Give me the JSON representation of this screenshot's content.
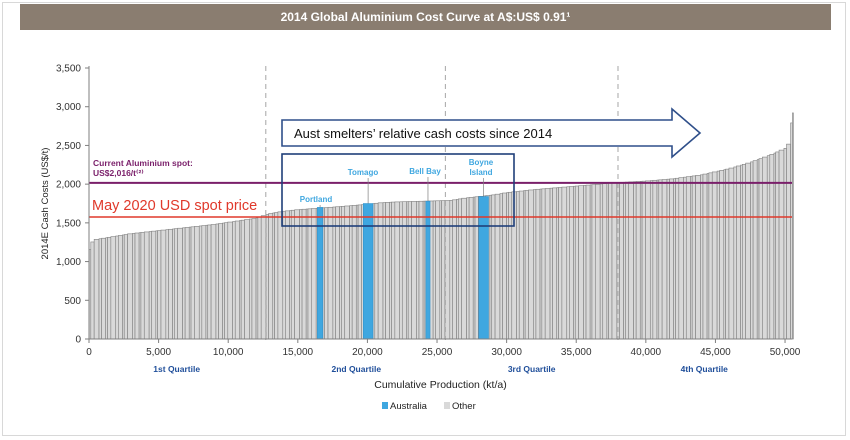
{
  "title": "2014 Global Aluminium Cost Curve at A$:US$ 0.91¹",
  "chart_data": {
    "type": "bar",
    "title": "2014 Global Aluminium Cost Curve at A$:US$ 0.91¹",
    "xlabel": "Cumulative Production (kt/a)",
    "ylabel": "2014E Cash Costs (US$/t)",
    "xlim": [
      0,
      50500
    ],
    "ylim": [
      0,
      3500
    ],
    "x_ticks": [
      0,
      5000,
      10000,
      15000,
      20000,
      25000,
      30000,
      35000,
      40000,
      45000,
      50000
    ],
    "x_tick_labels": [
      "0",
      "5,000",
      "10,000",
      "15,000",
      "20,000",
      "25,000",
      "30,000",
      "35,000",
      "40,000",
      "45,000",
      "50,000"
    ],
    "y_ticks": [
      0,
      500,
      1000,
      1500,
      2000,
      2500,
      3000,
      3500
    ],
    "y_tick_labels": [
      "0",
      "500",
      "1,000",
      "1,500",
      "2,000",
      "2,500",
      "3,000",
      "3,500"
    ],
    "quartile_boundaries": [
      12700,
      25600,
      38000
    ],
    "quartile_labels": [
      {
        "label": "1st Quartile",
        "x": 6300
      },
      {
        "label": "2nd Quartile",
        "x": 19200
      },
      {
        "label": "3rd Quartile",
        "x": 31800
      },
      {
        "label": "4th Quartile",
        "x": 44200
      }
    ],
    "cost_curve": [
      [
        0,
        1120
      ],
      [
        300,
        1280
      ],
      [
        1000,
        1300
      ],
      [
        2000,
        1330
      ],
      [
        3000,
        1360
      ],
      [
        4500,
        1390
      ],
      [
        6000,
        1420
      ],
      [
        7500,
        1450
      ],
      [
        9000,
        1480
      ],
      [
        10500,
        1520
      ],
      [
        12000,
        1560
      ],
      [
        13000,
        1620
      ],
      [
        14000,
        1650
      ],
      [
        15000,
        1670
      ],
      [
        16500,
        1690
      ],
      [
        18000,
        1710
      ],
      [
        20000,
        1740
      ],
      [
        21000,
        1760
      ],
      [
        22000,
        1770
      ],
      [
        24000,
        1780
      ],
      [
        26000,
        1790
      ],
      [
        27000,
        1820
      ],
      [
        28000,
        1840
      ],
      [
        29000,
        1860
      ],
      [
        30000,
        1890
      ],
      [
        32000,
        1930
      ],
      [
        34000,
        1960
      ],
      [
        36000,
        1990
      ],
      [
        38000,
        2020
      ],
      [
        40000,
        2040
      ],
      [
        42000,
        2070
      ],
      [
        44000,
        2120
      ],
      [
        46000,
        2200
      ],
      [
        47500,
        2280
      ],
      [
        49000,
        2380
      ],
      [
        50000,
        2460
      ],
      [
        50400,
        2550
      ],
      [
        50500,
        2920
      ],
      [
        50600,
        2920
      ]
    ],
    "australia_smelters": [
      {
        "name": "Portland",
        "x": [
          16400,
          16800
        ],
        "cost": 1700
      },
      {
        "name": "Tomago",
        "x": [
          19700,
          20400
        ],
        "cost": 1750
      },
      {
        "name": "Bell Bay",
        "x": [
          24200,
          24500
        ],
        "cost": 1780
      },
      {
        "name": "Boyne Island",
        "x": [
          28000,
          28700
        ],
        "cost": 1840
      }
    ],
    "reference_lines": [
      {
        "label_line1": "Current Aluminium spot:",
        "label_line2": "US$2,016/t⁽²⁾",
        "value": 2016,
        "color": "#7a1f6a"
      },
      {
        "label": "May 2020 USD spot price",
        "value": 1575,
        "color": "#e0392b"
      }
    ],
    "annotation_arrow": "Aust smelters’ relative cash costs since 2014",
    "legend": [
      {
        "name": "Australia",
        "color": "#3fa7e0"
      },
      {
        "name": "Other",
        "color": "#d9d9d9"
      }
    ],
    "legend_position": "bottom",
    "grid": false
  }
}
